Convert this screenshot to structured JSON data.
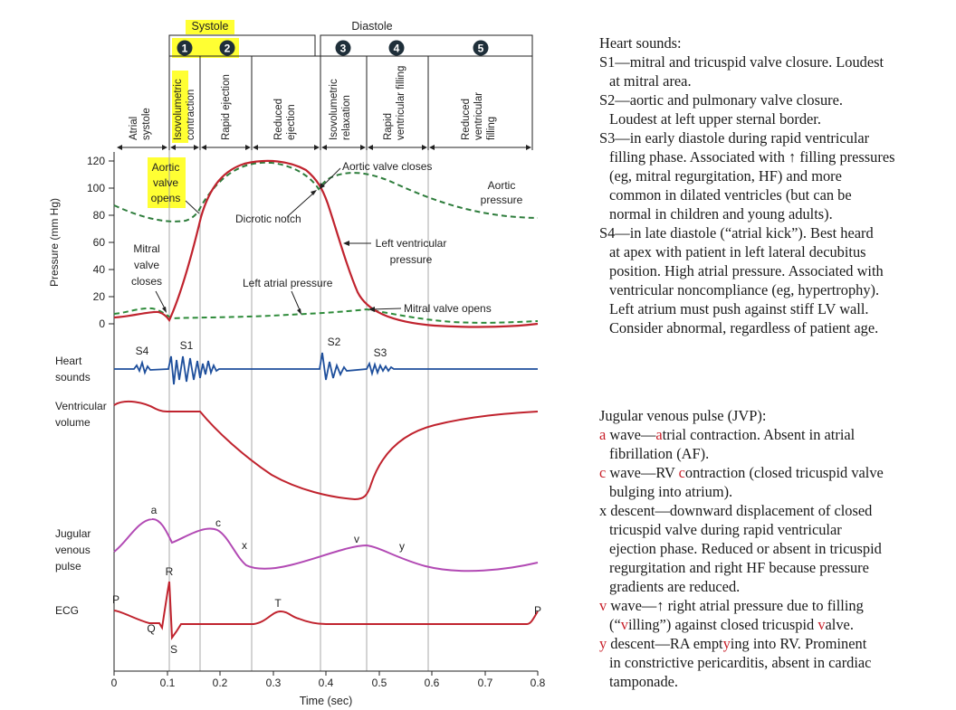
{
  "phases": {
    "systole": "Systole",
    "diastole": "Diastole",
    "num1": "1",
    "num2": "2",
    "num3": "3",
    "num4": "4",
    "num5": "5",
    "atrial_a": "Atrial",
    "atrial_b": "systole",
    "isovol_a": "Isovolumetric",
    "isovol_b": "contraction",
    "rapid_ejection": "Rapid ejection",
    "reduced_a": "Reduced",
    "reduced_b": "ejection",
    "isorelax_a": "Isovolumetric",
    "isorelax_b": "relaxation",
    "rapidfill_a": "Rapid",
    "rapidfill_b": "ventricular filling",
    "redfill_a": "Reduced",
    "redfill_b": "ventricular",
    "redfill_c": "filling"
  },
  "pressure": {
    "ylabel": "Pressure (mm Hg)",
    "ticks": [
      "120",
      "100",
      "80",
      "60",
      "40",
      "20",
      "0"
    ],
    "aortic_valve_opens": [
      "Aortic",
      "valve",
      "opens"
    ],
    "aortic_valve_closes": "Aortic valve closes",
    "aortic_pressure": [
      "Aortic",
      "pressure"
    ],
    "dicrotic_notch": "Dicrotic notch",
    "mitral_valve_closes": [
      "Mitral",
      "valve",
      "closes"
    ],
    "lv_pressure": [
      "Left ventricular",
      "pressure"
    ],
    "la_pressure": "Left atrial pressure",
    "mitral_valve_opens": "Mitral valve opens"
  },
  "rows": {
    "heart_sounds": [
      "Heart",
      "sounds"
    ],
    "s4": "S4",
    "s1": "S1",
    "s2": "S2",
    "s3": "S3",
    "ventricular_volume": [
      "Ventricular",
      "volume"
    ],
    "jvp": [
      "Jugular",
      "venous",
      "pulse"
    ],
    "jvp_a": "a",
    "jvp_c": "c",
    "jvp_x": "x",
    "jvp_v": "v",
    "jvp_y": "y",
    "ecg": "ECG",
    "ecg_p1": "P",
    "ecg_q": "Q",
    "ecg_r": "R",
    "ecg_s": "S",
    "ecg_t": "T",
    "ecg_p2": "P"
  },
  "time_axis": {
    "ticks": [
      "0",
      "0.1",
      "0.2",
      "0.3",
      "0.4",
      "0.5",
      "0.6",
      "0.7",
      "0.8"
    ],
    "xlabel": "Time (sec)"
  },
  "heart_sounds_panel": {
    "title": "Heart sounds:",
    "s1_line1": "S1—mitral and tricuspid valve closure. Loudest",
    "s1_line2": "at mitral area.",
    "s2_line1": "S2—aortic and pulmonary valve closure.",
    "s2_line2": "Loudest at left upper sternal border.",
    "s3_line1": "S3—in early diastole during rapid ventricular",
    "s3_line2": "filling phase. Associated with ↑ filling pressures",
    "s3_line3": "(eg, mitral regurgitation, HF) and more",
    "s3_line4": "common in dilated ventricles (but can be",
    "s3_line5": "normal in children and young adults).",
    "s4_line1": "S4—in late diastole (“atrial kick”). Best heard",
    "s4_line2": "at apex with patient in left lateral decubitus",
    "s4_line3": "position. High atrial pressure. Associated with",
    "s4_line4": "ventricular noncompliance (eg, hypertrophy).",
    "s4_line5": "Left atrium must push against stiff LV wall.",
    "s4_line6": "Consider abnormal, regardless of patient age."
  },
  "jvp_panel": {
    "title": "Jugular venous pulse (JVP):",
    "a_letter": "a",
    "a_mid": " wave—",
    "a_red": "a",
    "a_rest": "trial contraction. Absent in atrial",
    "a_line2": "fibrillation (AF).",
    "c_letter": "c",
    "c_mid": " wave—RV ",
    "c_red": "c",
    "c_rest": "ontraction (closed tricuspid valve",
    "c_line2": "bulging into atrium).",
    "x_line1": "x descent—downward displacement of closed",
    "x_line2": "tricuspid valve during rapid ventricular",
    "x_line3": "ejection phase. Reduced or absent in tricuspid",
    "x_line4": "regurgitation and right HF because pressure",
    "x_line5": "gradients are reduced.",
    "v_letter": "v",
    "v_mid": " wave—↑ right atrial pressure due to filling",
    "v_line2_a": "(“",
    "v_line2_red1": "v",
    "v_line2_b": "illing”) against closed tricuspid ",
    "v_line2_red2": "v",
    "v_line2_c": "alve.",
    "y_letter": "y",
    "y_mid": " descent—RA empt",
    "y_red": "y",
    "y_rest": "ing into RV. Prominent",
    "y_line2": "in constrictive pericarditis, absent in cardiac",
    "y_line3": "tamponade."
  },
  "colors": {
    "red_curve": "#c0232e",
    "aortic_dashed": "#2e7d3c",
    "la_dashed": "#2e8b3a",
    "heart_sounds": "#1e4f9c",
    "jvp": "#b24ab4",
    "badge": "#1f2f3a",
    "highlight": "#ffff33",
    "grid": "#a9a9a9"
  }
}
